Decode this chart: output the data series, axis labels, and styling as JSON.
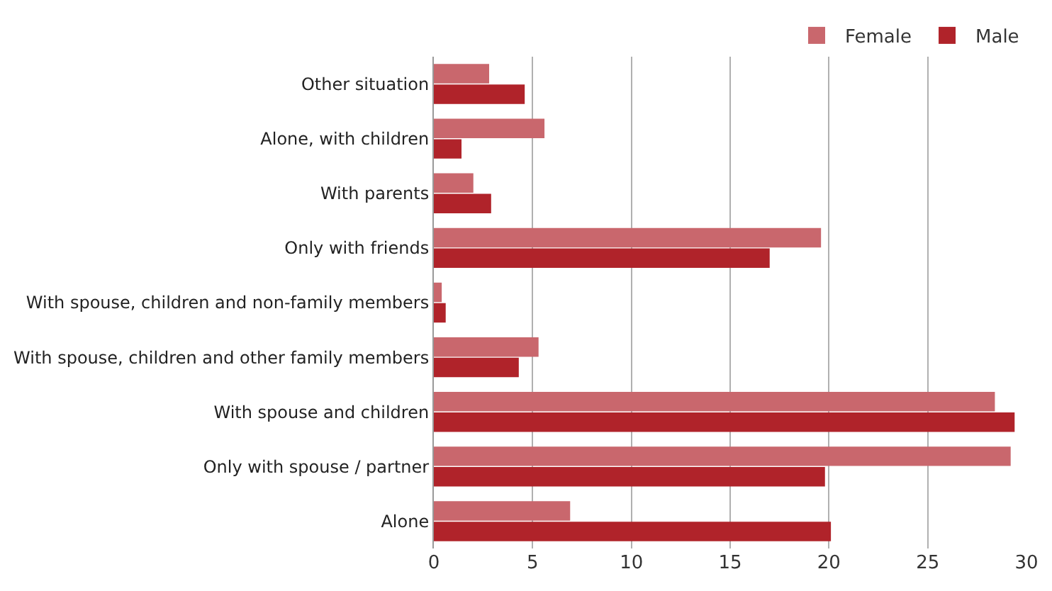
{
  "chart_data": {
    "type": "bar",
    "orientation": "horizontal",
    "categories": [
      "Other situation",
      "Alone, with children",
      "With parents",
      "Only with friends",
      "With spouse, children and non-family members",
      "With spouse, children and other family members",
      "With spouse and children",
      "Only with spouse / partner",
      "Alone"
    ],
    "series": [
      {
        "name": "Female",
        "color": "#c9676d",
        "values": [
          2.8,
          5.6,
          2.0,
          19.6,
          0.4,
          5.3,
          28.4,
          29.2,
          6.9
        ]
      },
      {
        "name": "Male",
        "color": "#b0232a",
        "values": [
          4.6,
          1.4,
          2.9,
          17.0,
          0.6,
          4.3,
          29.4,
          19.8,
          20.1
        ]
      }
    ],
    "xlim": [
      0,
      30
    ],
    "xticks": [
      0,
      5,
      10,
      15,
      20,
      25,
      30
    ],
    "grid": "x",
    "legend": "top right"
  }
}
